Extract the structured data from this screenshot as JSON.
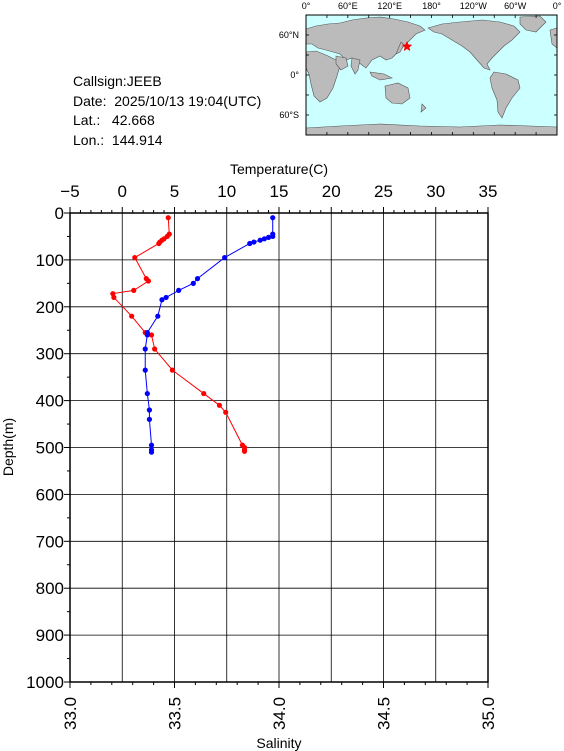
{
  "station": {
    "callsign": "Callsign:JEEB",
    "date": "Date:  2025/10/13 19:04(UTC)",
    "lat": "Lat.:   42.668",
    "lon": "Lon.:  144.914"
  },
  "map": {
    "lon_labels": [
      "0°",
      "60°E",
      "120°E",
      "180°",
      "120°W",
      "60°W",
      "0°"
    ],
    "lat_labels": [
      "60°N",
      "0°",
      "60°S"
    ],
    "ocean_color": "#ccffff",
    "land_color": "#bbbbbb",
    "marker_color": "#ff0000",
    "marker_icon": "star-icon"
  },
  "chart_data": {
    "type": "line",
    "y_axis": {
      "label": "Depth(m)",
      "range": [
        0,
        1000
      ],
      "reversed": true,
      "ticks": [
        0,
        100,
        200,
        300,
        400,
        500,
        600,
        700,
        800,
        900,
        1000
      ]
    },
    "top_axis": {
      "label": "Temperature(C)",
      "range": [
        -5,
        35
      ],
      "ticks": [
        -5,
        0,
        5,
        10,
        15,
        20,
        25,
        30,
        35
      ]
    },
    "bottom_axis": {
      "label": "Salinity",
      "range": [
        33.0,
        35.0
      ],
      "ticks": [
        "33.0",
        "33.5",
        "34.0",
        "34.5",
        "35.0"
      ]
    },
    "grid": true,
    "series": [
      {
        "axis": "temperature",
        "color": "#ff0000",
        "points": [
          [
            4.4,
            10
          ],
          [
            4.5,
            45
          ],
          [
            4.3,
            50
          ],
          [
            4.0,
            55
          ],
          [
            3.8,
            58
          ],
          [
            3.6,
            62
          ],
          [
            3.5,
            65
          ],
          [
            1.2,
            95
          ],
          [
            2.3,
            140
          ],
          [
            2.5,
            145
          ],
          [
            1.1,
            165
          ],
          [
            -0.9,
            172
          ],
          [
            -0.8,
            180
          ],
          [
            0.9,
            220
          ],
          [
            2.2,
            255
          ],
          [
            2.8,
            260
          ],
          [
            3.1,
            290
          ],
          [
            4.8,
            335
          ],
          [
            7.8,
            385
          ],
          [
            9.3,
            410
          ],
          [
            9.9,
            425
          ],
          [
            11.5,
            495
          ],
          [
            11.7,
            500
          ],
          [
            11.7,
            505
          ],
          [
            11.7,
            508
          ]
        ]
      },
      {
        "axis": "salinity",
        "color": "#0000ff",
        "points": [
          [
            33.97,
            10
          ],
          [
            33.97,
            45
          ],
          [
            33.97,
            50
          ],
          [
            33.95,
            52
          ],
          [
            33.93,
            55
          ],
          [
            33.91,
            58
          ],
          [
            33.88,
            62
          ],
          [
            33.86,
            65
          ],
          [
            33.74,
            95
          ],
          [
            33.61,
            140
          ],
          [
            33.59,
            150
          ],
          [
            33.52,
            165
          ],
          [
            33.46,
            180
          ],
          [
            33.44,
            185
          ],
          [
            33.42,
            220
          ],
          [
            33.37,
            255
          ],
          [
            33.37,
            260
          ],
          [
            33.36,
            290
          ],
          [
            33.36,
            335
          ],
          [
            33.37,
            385
          ],
          [
            33.38,
            420
          ],
          [
            33.38,
            440
          ],
          [
            33.39,
            495
          ],
          [
            33.39,
            505
          ],
          [
            33.39,
            510
          ]
        ]
      }
    ]
  }
}
